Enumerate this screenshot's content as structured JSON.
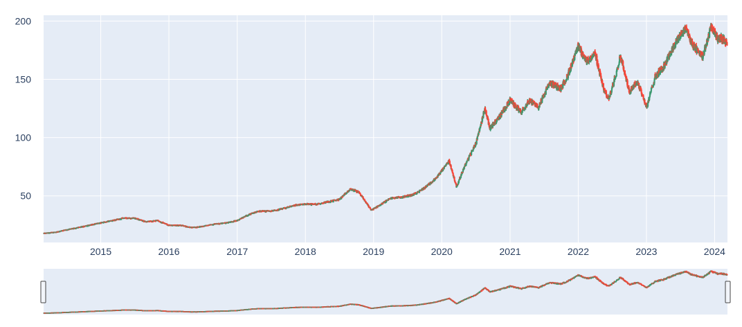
{
  "chart_data": {
    "type": "candlestick",
    "title": "",
    "xlabel": "",
    "ylabel": "",
    "x_range": [
      "2014-03-01",
      "2024-03-10"
    ],
    "y_range": [
      10,
      205
    ],
    "y_ticks": [
      50,
      100,
      150,
      200
    ],
    "y_tick_labels": [
      "50",
      "100",
      "150",
      "200"
    ],
    "x_ticks": [
      "2015-01-01",
      "2016-01-01",
      "2017-01-01",
      "2018-01-01",
      "2019-01-01",
      "2020-01-01",
      "2021-01-01",
      "2022-01-01",
      "2023-01-01",
      "2024-01-01"
    ],
    "x_tick_labels": [
      "2015",
      "2016",
      "2017",
      "2018",
      "2019",
      "2020",
      "2021",
      "2022",
      "2023",
      "2024"
    ],
    "grid": true,
    "rangeslider": true,
    "colors": {
      "increasing": "#3d9970",
      "decreasing": "#ff4136",
      "plot_bg": "#e5ecf6",
      "grid": "#ffffff",
      "tick_text": "#2a3f5f"
    },
    "close_series": [
      [
        "2014-03-01",
        18
      ],
      [
        "2014-05-01",
        19
      ],
      [
        "2014-07-01",
        21
      ],
      [
        "2014-09-01",
        23
      ],
      [
        "2014-11-01",
        25
      ],
      [
        "2015-01-01",
        27
      ],
      [
        "2015-03-01",
        29
      ],
      [
        "2015-05-01",
        31
      ],
      [
        "2015-07-01",
        31
      ],
      [
        "2015-09-01",
        28
      ],
      [
        "2015-11-01",
        29
      ],
      [
        "2016-01-01",
        25
      ],
      [
        "2016-03-01",
        25
      ],
      [
        "2016-05-01",
        23
      ],
      [
        "2016-07-01",
        24
      ],
      [
        "2016-09-01",
        26
      ],
      [
        "2016-11-01",
        27
      ],
      [
        "2017-01-01",
        29
      ],
      [
        "2017-03-01",
        34
      ],
      [
        "2017-05-01",
        37
      ],
      [
        "2017-07-01",
        37
      ],
      [
        "2017-09-01",
        39
      ],
      [
        "2017-11-01",
        42
      ],
      [
        "2018-01-01",
        43
      ],
      [
        "2018-03-01",
        43
      ],
      [
        "2018-05-01",
        45
      ],
      [
        "2018-07-01",
        47
      ],
      [
        "2018-09-01",
        56
      ],
      [
        "2018-10-15",
        53
      ],
      [
        "2018-12-20",
        38
      ],
      [
        "2019-02-01",
        42
      ],
      [
        "2019-04-01",
        48
      ],
      [
        "2019-06-01",
        49
      ],
      [
        "2019-08-01",
        51
      ],
      [
        "2019-10-01",
        57
      ],
      [
        "2019-12-01",
        65
      ],
      [
        "2020-02-10",
        80
      ],
      [
        "2020-03-20",
        58
      ],
      [
        "2020-05-01",
        75
      ],
      [
        "2020-07-01",
        95
      ],
      [
        "2020-08-20",
        125
      ],
      [
        "2020-09-15",
        108
      ],
      [
        "2020-11-01",
        117
      ],
      [
        "2021-01-01",
        132
      ],
      [
        "2021-03-01",
        122
      ],
      [
        "2021-04-15",
        132
      ],
      [
        "2021-06-01",
        126
      ],
      [
        "2021-08-01",
        147
      ],
      [
        "2021-10-01",
        142
      ],
      [
        "2021-11-15",
        157
      ],
      [
        "2022-01-01",
        178
      ],
      [
        "2022-02-15",
        165
      ],
      [
        "2022-04-01",
        172
      ],
      [
        "2022-05-20",
        140
      ],
      [
        "2022-06-15",
        133
      ],
      [
        "2022-08-15",
        170
      ],
      [
        "2022-10-01",
        140
      ],
      [
        "2022-11-15",
        148
      ],
      [
        "2023-01-03",
        126
      ],
      [
        "2023-02-15",
        152
      ],
      [
        "2023-04-01",
        160
      ],
      [
        "2023-06-01",
        180
      ],
      [
        "2023-07-31",
        195
      ],
      [
        "2023-09-01",
        180
      ],
      [
        "2023-10-30",
        170
      ],
      [
        "2023-12-15",
        195
      ],
      [
        "2024-01-15",
        185
      ],
      [
        "2024-02-15",
        185
      ],
      [
        "2024-03-08",
        180
      ]
    ]
  }
}
